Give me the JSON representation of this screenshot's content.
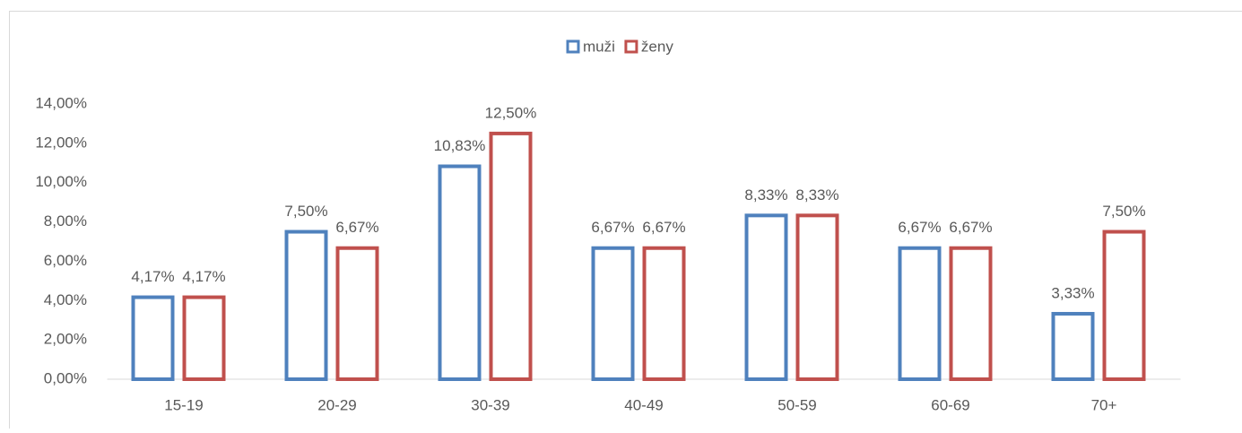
{
  "chart_data": {
    "type": "bar",
    "categories": [
      "15-19",
      "20-29",
      "30-39",
      "40-49",
      "50-59",
      "60-69",
      "70+"
    ],
    "series": [
      {
        "name": "muži",
        "color": "#4f81bd",
        "values": [
          4.17,
          7.5,
          10.83,
          6.67,
          8.33,
          6.67,
          3.33
        ],
        "value_labels": [
          "4,17%",
          "7,50%",
          "10,83%",
          "6,67%",
          "8,33%",
          "6,67%",
          "3,33%"
        ]
      },
      {
        "name": "ženy",
        "color": "#c0504d",
        "values": [
          4.17,
          6.67,
          12.5,
          6.67,
          8.33,
          6.67,
          7.5
        ],
        "value_labels": [
          "4,17%",
          "6,67%",
          "12,50%",
          "6,67%",
          "8,33%",
          "6,67%",
          "7,50%"
        ]
      }
    ],
    "ylim": [
      0,
      14
    ],
    "yticks": [
      {
        "value": 0,
        "label": "0,00%"
      },
      {
        "value": 2,
        "label": "2,00%"
      },
      {
        "value": 4,
        "label": "4,00%"
      },
      {
        "value": 6,
        "label": "6,00%"
      },
      {
        "value": 8,
        "label": "8,00%"
      },
      {
        "value": 10,
        "label": "10,00%"
      },
      {
        "value": 12,
        "label": "12,00%"
      },
      {
        "value": 14,
        "label": "14,00%"
      }
    ],
    "legend": "top"
  }
}
